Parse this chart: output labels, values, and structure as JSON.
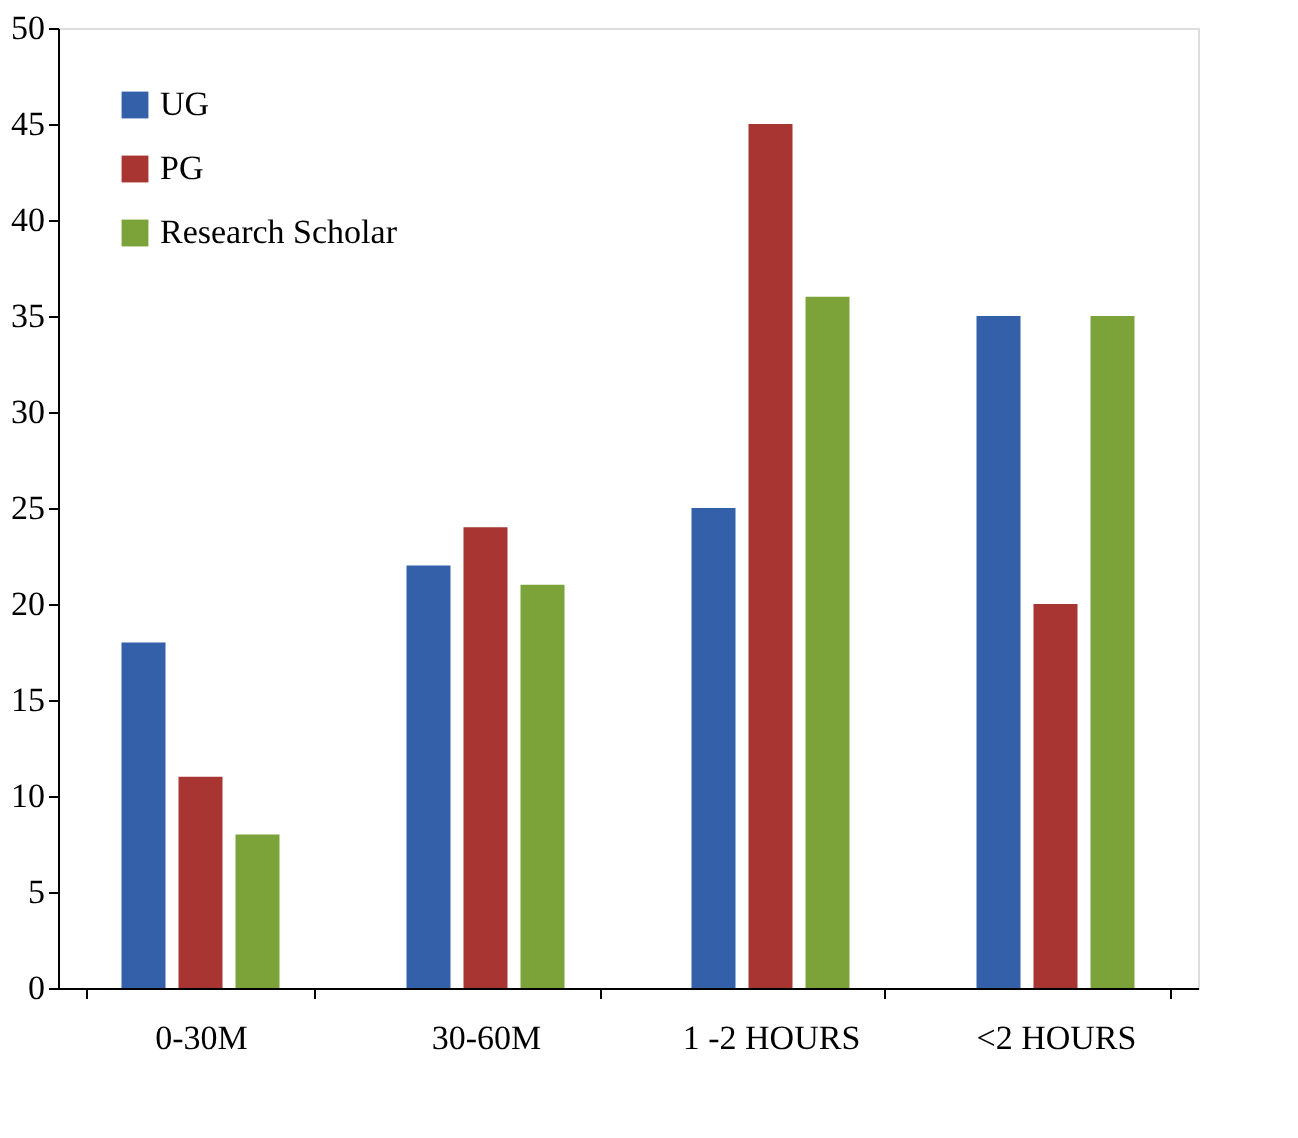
{
  "chart_data": {
    "type": "bar",
    "categories": [
      "0-30M",
      "30-60M",
      "1 -2 HOURS",
      "<2 HOURS"
    ],
    "series": [
      {
        "name": "UG",
        "color": "#3360a9",
        "values": [
          18,
          22,
          25,
          35
        ]
      },
      {
        "name": "PG",
        "color": "#a83532",
        "values": [
          11,
          24,
          45,
          20
        ]
      },
      {
        "name": "Research Scholar",
        "color": "#7ba33a",
        "values": [
          8,
          21,
          36,
          35
        ]
      }
    ],
    "ylim": [
      0,
      50
    ],
    "yticks": [
      0,
      5,
      10,
      15,
      20,
      25,
      30,
      35,
      40,
      45,
      50
    ],
    "grid": false,
    "legend": "top left"
  }
}
